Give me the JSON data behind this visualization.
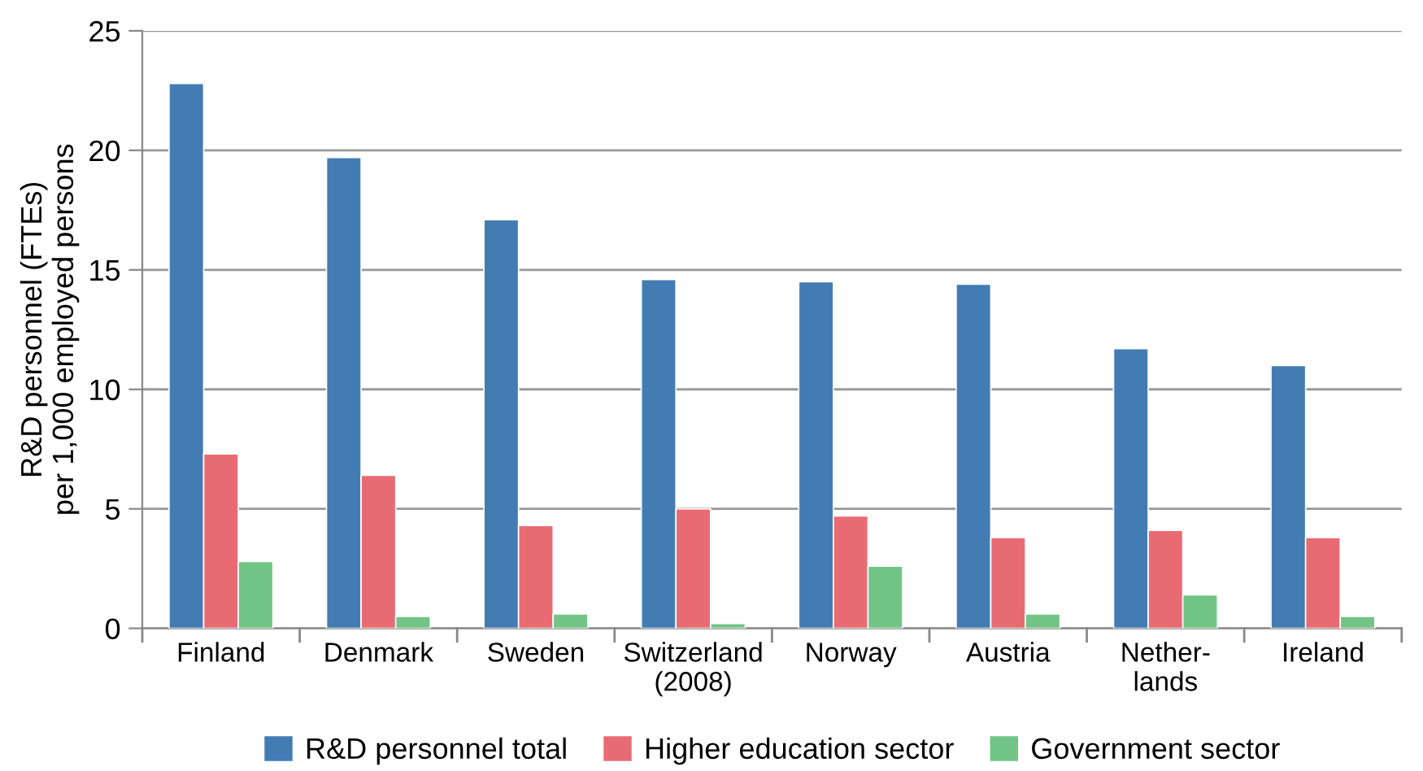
{
  "chart_data": {
    "type": "bar",
    "ylabel": "R&D personnel (FTEs)\nper 1,000 employed persons",
    "categories": [
      "Finland",
      "Denmark",
      "Sweden",
      "Switzerland\n(2008)",
      "Norway",
      "Austria",
      "Nether-\nlands",
      "Ireland"
    ],
    "series": [
      {
        "name": "R&D personnel total",
        "color": "#437cb3",
        "values": [
          22.8,
          19.7,
          17.1,
          14.6,
          14.5,
          14.4,
          11.7,
          11.0
        ]
      },
      {
        "name": "Higher education sector",
        "color": "#e86b73",
        "values": [
          7.3,
          6.4,
          4.3,
          5.0,
          4.7,
          3.8,
          4.1,
          3.8
        ]
      },
      {
        "name": "Government sector",
        "color": "#72c486",
        "values": [
          2.8,
          0.5,
          0.6,
          0.2,
          2.6,
          0.6,
          1.4,
          0.5
        ]
      }
    ],
    "ylim": [
      0,
      25
    ],
    "yticks": [
      0,
      5,
      10,
      15,
      20,
      25
    ],
    "grid": "y",
    "legend": "bottom"
  }
}
